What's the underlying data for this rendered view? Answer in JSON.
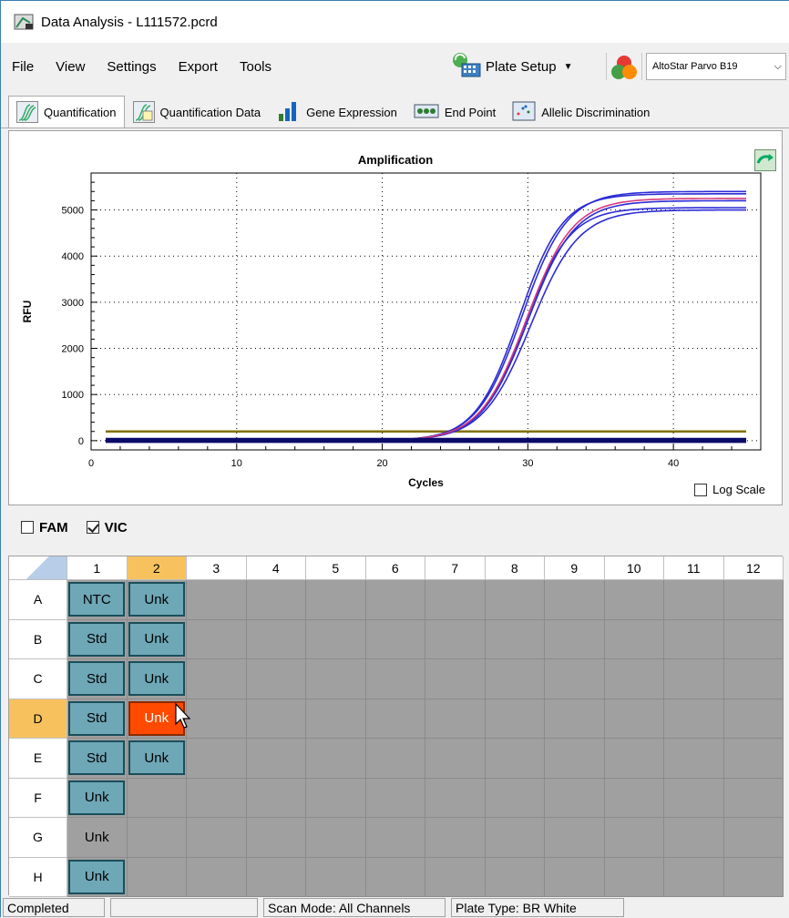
{
  "window": {
    "title": "Data Analysis - L111572.pcrd"
  },
  "menu": [
    "File",
    "View",
    "Settings",
    "Export",
    "Tools"
  ],
  "toolbar": {
    "plate_setup_label": "Plate Setup",
    "assay_select_value": "AltoStar Parvo B19"
  },
  "tabs": [
    "Quantification",
    "Quantification Data",
    "Gene Expression",
    "End Point",
    "Allelic Discrimination"
  ],
  "chart_data": {
    "type": "line",
    "title": "Amplification",
    "xlabel": "Cycles",
    "ylabel": "RFU",
    "xlim": [
      0,
      46
    ],
    "ylim": [
      -200,
      5800
    ],
    "x_ticks": [
      0,
      10,
      20,
      30,
      40
    ],
    "y_ticks": [
      0,
      1000,
      2000,
      3000,
      4000,
      5000
    ],
    "log_scale": false,
    "grid": true,
    "threshold": {
      "value": 200,
      "color": "#807000"
    },
    "series": [
      {
        "color": "#2b2bd6",
        "midpoint": 29.6,
        "plateau": 5400,
        "slope": 1.55
      },
      {
        "color": "#2b2bd6",
        "midpoint": 29.4,
        "plateau": 5350,
        "slope": 1.5
      },
      {
        "color": "#2b2bd6",
        "midpoint": 30.0,
        "plateau": 5200,
        "slope": 1.6
      },
      {
        "color": "#2b2bd6",
        "midpoint": 29.8,
        "plateau": 5050,
        "slope": 1.55
      },
      {
        "color": "#2b2bd6",
        "midpoint": 30.2,
        "plateau": 5000,
        "slope": 1.65
      },
      {
        "color": "#d43a7a",
        "midpoint": 29.9,
        "plateau": 5250,
        "slope": 1.6
      },
      {
        "color": "#0a0a6a",
        "flat": 30
      },
      {
        "color": "#0a0a6a",
        "flat": 10
      },
      {
        "color": "#0a0a6a",
        "flat": -20
      }
    ],
    "x_start": 1,
    "x_end": 45
  },
  "log_scale_label": "Log Scale",
  "channels": [
    {
      "name": "FAM",
      "checked": false
    },
    {
      "name": "VIC",
      "checked": true
    }
  ],
  "plate": {
    "columns": [
      "1",
      "2",
      "3",
      "4",
      "5",
      "6",
      "7",
      "8",
      "9",
      "10",
      "11",
      "12"
    ],
    "rows": [
      "A",
      "B",
      "C",
      "D",
      "E",
      "F",
      "G",
      "H"
    ],
    "selected_column": "2",
    "selected_row": "D",
    "wells": {
      "A1": "NTC",
      "A2": "Unk",
      "B1": "Std",
      "B2": "Unk",
      "C1": "Std",
      "C2": "Unk",
      "D1": "Std",
      "D2": "Unk",
      "E1": "Std",
      "E2": "Unk",
      "F1": "Unk",
      "G1": "Unk",
      "H1": "Unk"
    },
    "unselected_wells": [
      "G1"
    ],
    "active_well": "D2"
  },
  "status": {
    "left": "Completed",
    "scan_mode": "Scan Mode: All Channels",
    "plate_type": "Plate Type: BR White"
  }
}
